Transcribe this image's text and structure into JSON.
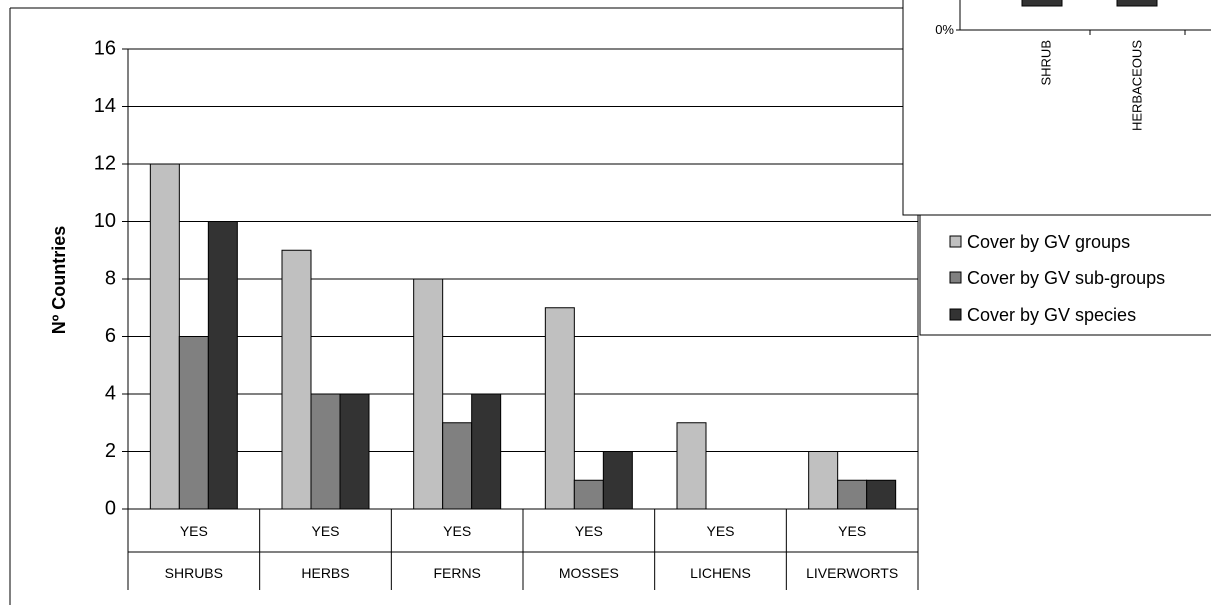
{
  "chart_data": {
    "type": "bar",
    "title": "",
    "xlabel": "",
    "ylabel": "Nº Countries",
    "ylim": [
      0,
      16
    ],
    "yticks": [
      0,
      2,
      4,
      6,
      8,
      10,
      12,
      14,
      16
    ],
    "grid": true,
    "legend_position": "right",
    "categories": [
      {
        "sub": "YES",
        "group": "SHRUBS"
      },
      {
        "sub": "YES",
        "group": "HERBS"
      },
      {
        "sub": "YES",
        "group": "FERNS"
      },
      {
        "sub": "YES",
        "group": "MOSSES"
      },
      {
        "sub": "YES",
        "group": "LICHENS"
      },
      {
        "sub": "YES",
        "group": "LIVERWORTS"
      }
    ],
    "series": [
      {
        "name": "Cover by GV groups",
        "color": "#c0c0c0",
        "values": [
          12,
          9,
          8,
          7,
          3,
          2
        ]
      },
      {
        "name": "Cover by GV sub-groups",
        "color": "#808080",
        "values": [
          6,
          4,
          3,
          1,
          0,
          1
        ]
      },
      {
        "name": "Cover by GV species",
        "color": "#333333",
        "values": [
          10,
          4,
          4,
          2,
          0,
          1
        ]
      }
    ]
  },
  "inset": {
    "y_tick_label": "0%",
    "categories": [
      "SHRUB",
      "HERBACEOUS"
    ]
  }
}
